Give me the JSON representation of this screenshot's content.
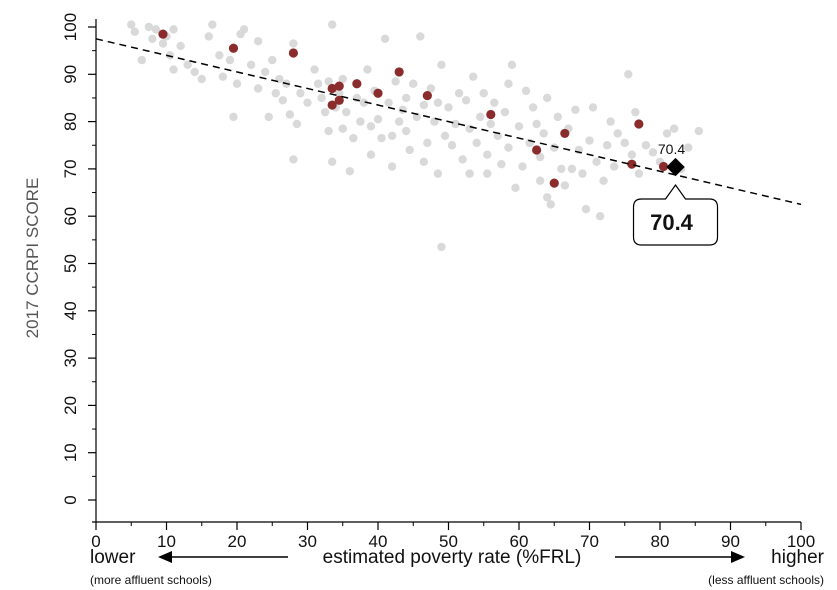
{
  "chart_data": {
    "type": "scatter",
    "title": "",
    "ylabel": "2017 CCRPI SCORE",
    "xlabel": "estimated poverty rate (%FRL)",
    "x_left_label": "lower",
    "x_right_label": "higher",
    "x_left_sub": "(more affluent schools)",
    "x_right_sub": "(less affluent schools)",
    "xlim": [
      0,
      100
    ],
    "ylim": [
      0,
      100
    ],
    "x_ticks": [
      "0",
      "10",
      "20",
      "30",
      "40",
      "50",
      "60",
      "70",
      "80",
      "90",
      "100"
    ],
    "y_ticks": [
      "0",
      "10",
      "20",
      "30",
      "40",
      "50",
      "60",
      "70",
      "80",
      "90",
      "100"
    ],
    "trend_line": {
      "x": [
        0,
        100
      ],
      "y": [
        97.5,
        62.5
      ],
      "style": "dashed"
    },
    "highlight": {
      "x": 82.2,
      "y": 70.4,
      "label": "70.4",
      "callout": "70.4"
    },
    "colors": {
      "background_points": "#d9d9d9",
      "highlight_points": "#8b2c2c",
      "marker": "#000000",
      "trend": "#000000"
    },
    "series": [
      {
        "role": "background",
        "points": [
          [
            5,
            100.5
          ],
          [
            5.5,
            99
          ],
          [
            6.5,
            93
          ],
          [
            7.5,
            100
          ],
          [
            8,
            97.5
          ],
          [
            8.5,
            99.5
          ],
          [
            9.5,
            96.5
          ],
          [
            10,
            98
          ],
          [
            10.5,
            94
          ],
          [
            11,
            91
          ],
          [
            11,
            99.5
          ],
          [
            12,
            96
          ],
          [
            13,
            92
          ],
          [
            14,
            90.5
          ],
          [
            15,
            89
          ],
          [
            16,
            98
          ],
          [
            16.5,
            100.5
          ],
          [
            17.5,
            94
          ],
          [
            18,
            89.5
          ],
          [
            19,
            93
          ],
          [
            19.5,
            81
          ],
          [
            20,
            88
          ],
          [
            20.5,
            98.5
          ],
          [
            21,
            99.5
          ],
          [
            22,
            92
          ],
          [
            23,
            97
          ],
          [
            23,
            87
          ],
          [
            24,
            90.5
          ],
          [
            24.5,
            81
          ],
          [
            25,
            93
          ],
          [
            25.5,
            86
          ],
          [
            26,
            89
          ],
          [
            26.5,
            84.5
          ],
          [
            27,
            88
          ],
          [
            27.5,
            81.5
          ],
          [
            28,
            96.5
          ],
          [
            28,
            72
          ],
          [
            28.5,
            79.5
          ],
          [
            29,
            86
          ],
          [
            30,
            84
          ],
          [
            31,
            91
          ],
          [
            31.5,
            88
          ],
          [
            32,
            85
          ],
          [
            32.5,
            82
          ],
          [
            33,
            88.5
          ],
          [
            33,
            78
          ],
          [
            33.5,
            100.5
          ],
          [
            33.5,
            71.5
          ],
          [
            34,
            83
          ],
          [
            34.5,
            86
          ],
          [
            35,
            78.5
          ],
          [
            35,
            89
          ],
          [
            35.5,
            82
          ],
          [
            36,
            69.5
          ],
          [
            36.5,
            76.5
          ],
          [
            37,
            85
          ],
          [
            37.5,
            80
          ],
          [
            38,
            84
          ],
          [
            38.5,
            91
          ],
          [
            39,
            79
          ],
          [
            39,
            73
          ],
          [
            39.5,
            86.5
          ],
          [
            40,
            80.5
          ],
          [
            40.5,
            76.5
          ],
          [
            41,
            97.5
          ],
          [
            41.5,
            84
          ],
          [
            42,
            77
          ],
          [
            42,
            70.5
          ],
          [
            42.5,
            88.5
          ],
          [
            43,
            80
          ],
          [
            43.5,
            82.5
          ],
          [
            44,
            85
          ],
          [
            44,
            78
          ],
          [
            44.5,
            74
          ],
          [
            45,
            88
          ],
          [
            45.5,
            81
          ],
          [
            46,
            98
          ],
          [
            46.5,
            83.5
          ],
          [
            46.5,
            71.5
          ],
          [
            47,
            75.5
          ],
          [
            47.5,
            87
          ],
          [
            48,
            80
          ],
          [
            48.5,
            84
          ],
          [
            48.5,
            69
          ],
          [
            49,
            92
          ],
          [
            49.5,
            77
          ],
          [
            50,
            83
          ],
          [
            50.5,
            75
          ],
          [
            51,
            79.5
          ],
          [
            51.5,
            86
          ],
          [
            52,
            72
          ],
          [
            52.5,
            84.5
          ],
          [
            53,
            78.5
          ],
          [
            53,
            69
          ],
          [
            53.5,
            89.5
          ],
          [
            54,
            75.5
          ],
          [
            54.5,
            81
          ],
          [
            55,
            86
          ],
          [
            55.5,
            73
          ],
          [
            55.5,
            69
          ],
          [
            56,
            79.5
          ],
          [
            56.5,
            84
          ],
          [
            57,
            77
          ],
          [
            57.5,
            71
          ],
          [
            58,
            82
          ],
          [
            58.5,
            74.5
          ],
          [
            58.5,
            88
          ],
          [
            59,
            92
          ],
          [
            59.5,
            66
          ],
          [
            60,
            79
          ],
          [
            60.5,
            70.5
          ],
          [
            61,
            86.5
          ],
          [
            61.5,
            75.5
          ],
          [
            62,
            83
          ],
          [
            62.5,
            79.5
          ],
          [
            63,
            72.5
          ],
          [
            63,
            67.5
          ],
          [
            63.5,
            77.5
          ],
          [
            64,
            64
          ],
          [
            64,
            85
          ],
          [
            64.5,
            62.5
          ],
          [
            65,
            74.5
          ],
          [
            65.5,
            81
          ],
          [
            66,
            70
          ],
          [
            66.5,
            66.5
          ],
          [
            67,
            78.5
          ],
          [
            67.5,
            70
          ],
          [
            68,
            82.5
          ],
          [
            68.5,
            74
          ],
          [
            69,
            69
          ],
          [
            69.5,
            61.5
          ],
          [
            70,
            76
          ],
          [
            70.5,
            83
          ],
          [
            71,
            71.5
          ],
          [
            71.5,
            60
          ],
          [
            72,
            67.5
          ],
          [
            72.5,
            75
          ],
          [
            73,
            80
          ],
          [
            73.5,
            70.5
          ],
          [
            74,
            77.5
          ],
          [
            75,
            75.5
          ],
          [
            75.5,
            90
          ],
          [
            76,
            73
          ],
          [
            76.5,
            82
          ],
          [
            77,
            69
          ],
          [
            78,
            75
          ],
          [
            79,
            73.5
          ],
          [
            80,
            71.5
          ],
          [
            81,
            77.5
          ],
          [
            82,
            78.5
          ],
          [
            83,
            70
          ],
          [
            84,
            74.5
          ],
          [
            85.5,
            78
          ],
          [
            49,
            53.5
          ]
        ]
      },
      {
        "role": "highlight",
        "points": [
          [
            9.5,
            98.5
          ],
          [
            19.5,
            95.5
          ],
          [
            28,
            94.5
          ],
          [
            33.5,
            87
          ],
          [
            33.5,
            83.5
          ],
          [
            34.5,
            87.5
          ],
          [
            34.5,
            84.5
          ],
          [
            37,
            88
          ],
          [
            40,
            86
          ],
          [
            43,
            90.5
          ],
          [
            47,
            85.5
          ],
          [
            56,
            81.5
          ],
          [
            62.5,
            74
          ],
          [
            65,
            67
          ],
          [
            66.5,
            77.5
          ],
          [
            76,
            71
          ],
          [
            77,
            79.5
          ],
          [
            80.5,
            70.5
          ]
        ]
      }
    ]
  }
}
